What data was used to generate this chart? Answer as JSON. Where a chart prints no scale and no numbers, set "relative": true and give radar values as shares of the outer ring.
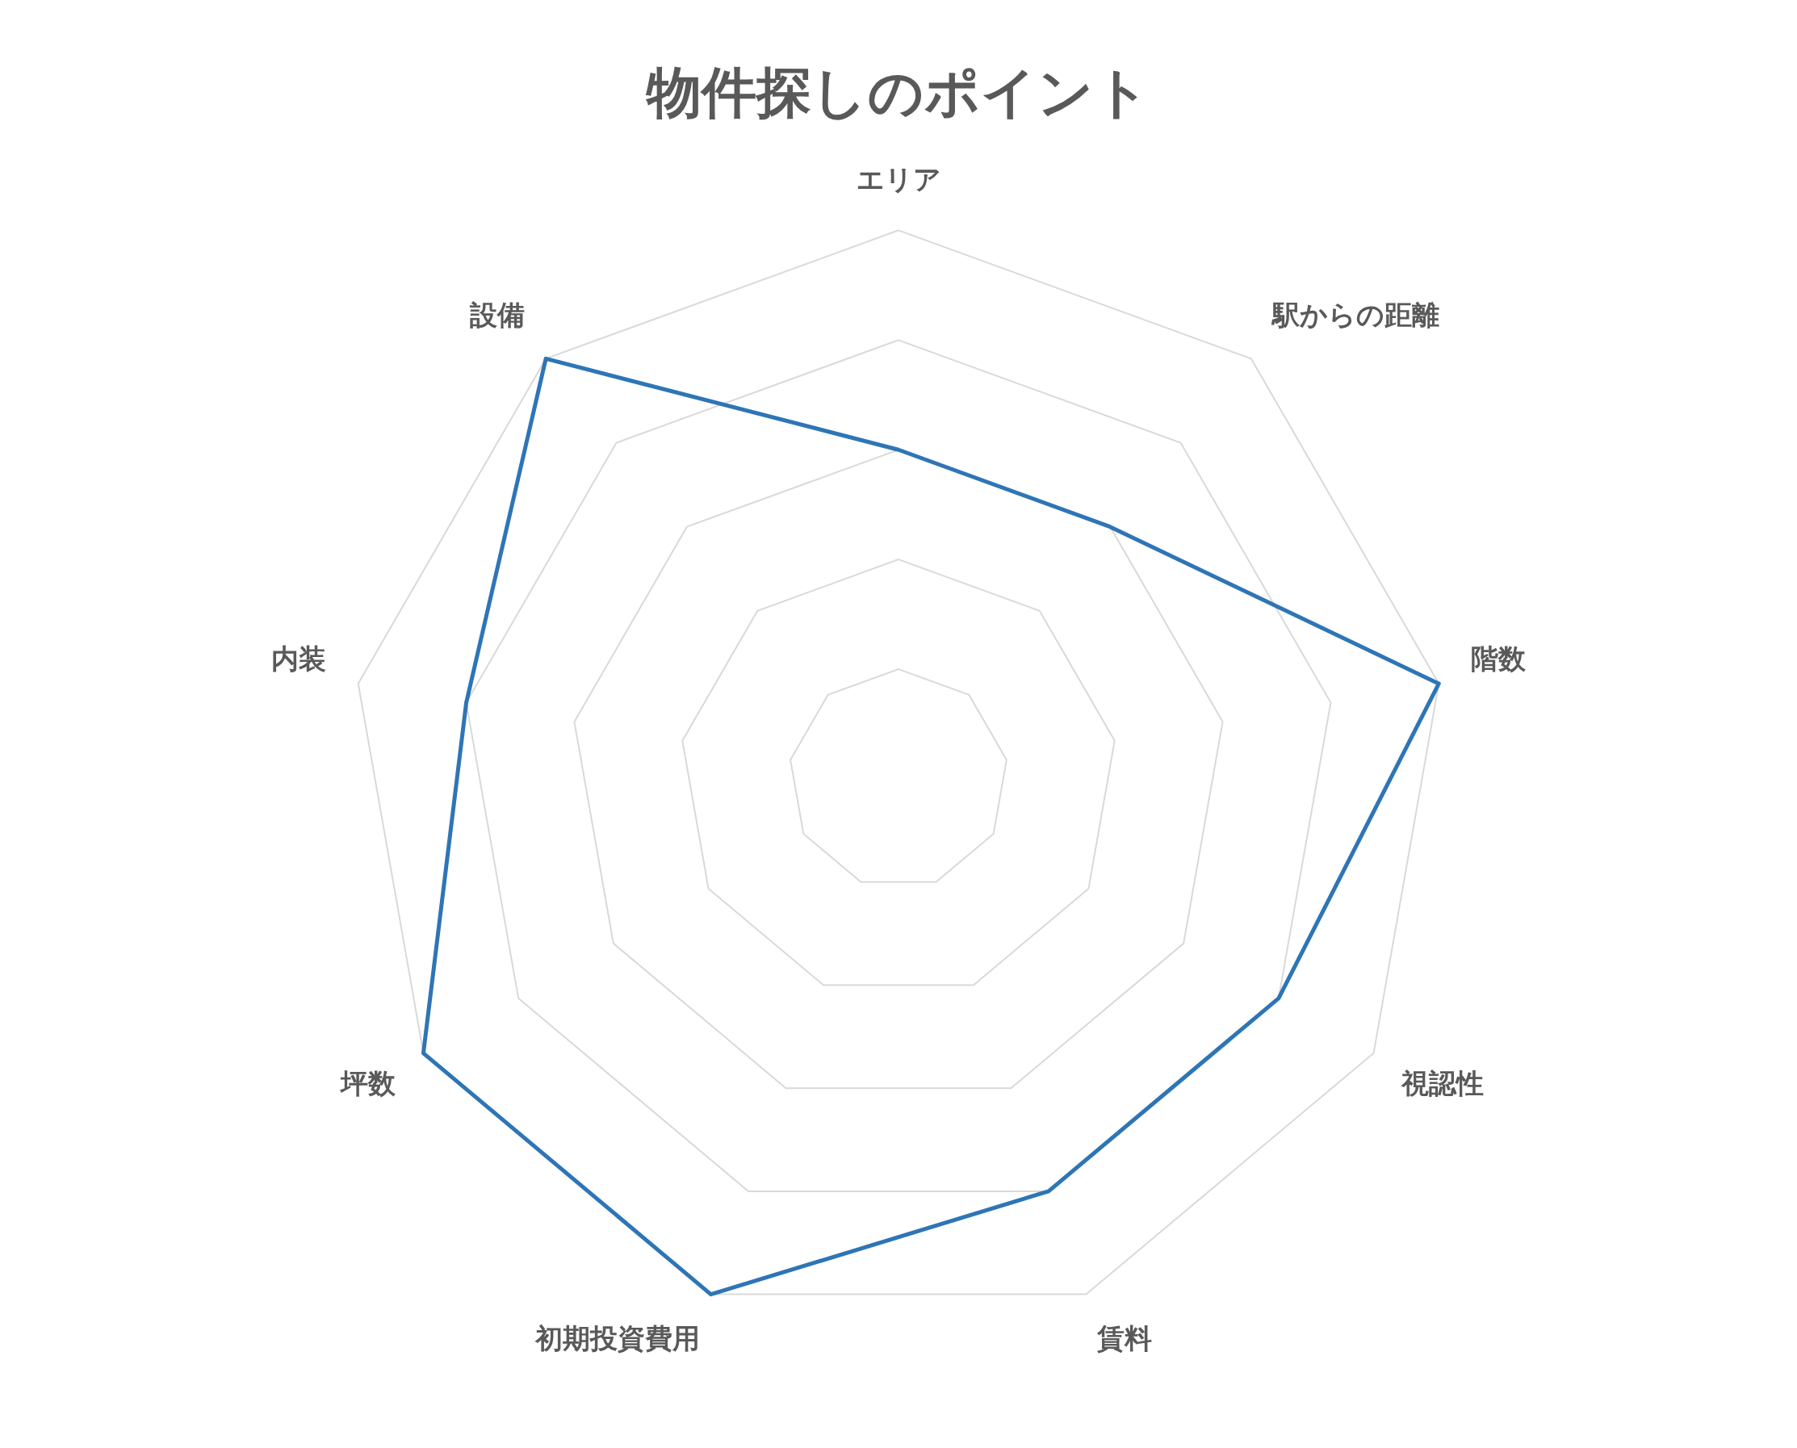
{
  "chart_data": {
    "type": "radar",
    "title": "物件探しのポイント",
    "categories": [
      "エリア",
      "駅からの距離",
      "階数",
      "視認性",
      "賃料",
      "初期投資費用",
      "坪数",
      "内装",
      "設備"
    ],
    "relative": true,
    "series": [
      {
        "color": "#2e75b6",
        "values": [
          0.6,
          0.6,
          1,
          0.8,
          0.8,
          1,
          1,
          0.8,
          1
        ]
      }
    ],
    "marker": "none",
    "legend": false,
    "grid": true
  }
}
